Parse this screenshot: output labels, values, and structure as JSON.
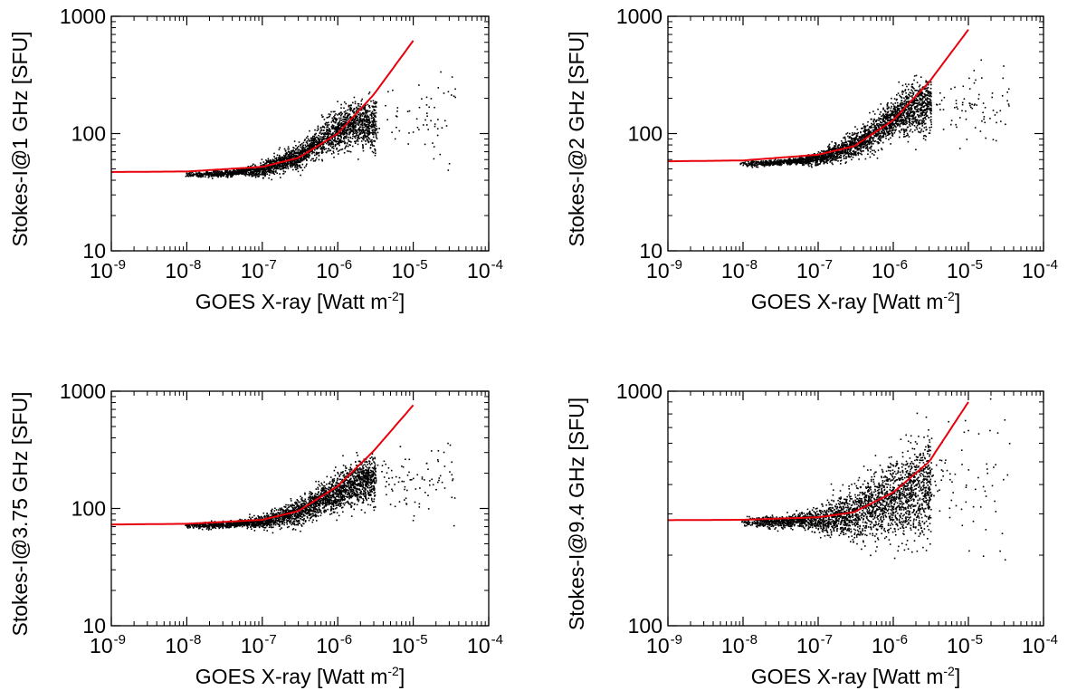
{
  "colors": {
    "points": "#000000",
    "fit": "#e8000b",
    "axes": "#000000"
  },
  "chart_data": [
    {
      "type": "scatter",
      "xlabel": "GOES X-ray [Watt m",
      "xlabel_sup": "-2",
      "xlabel_end": "]",
      "ylabel": "Stokes-I@1 GHz [SFU]",
      "x_scale": "log",
      "y_scale": "log",
      "xlim": [
        1e-09,
        0.0001
      ],
      "ylim": [
        10,
        1000
      ],
      "x_ticks": [
        "-9",
        "-8",
        "-7",
        "-6",
        "-5",
        "-4"
      ],
      "y_ticks": [
        "10",
        "100",
        "1000"
      ],
      "grid": false,
      "series": [
        {
          "kind": "points",
          "x": [
            1e-08,
            3e-08,
            1e-07,
            3e-07,
            6e-07,
            1e-06,
            1.5e-06,
            2.5e-06,
            4e-06,
            1e-05,
            4e-05
          ],
          "y": [
            45,
            46,
            50,
            65,
            90,
            110,
            120,
            125,
            120,
            130,
            150
          ]
        },
        {
          "kind": "fit",
          "x": [
            1e-09,
            1e-08,
            1e-07,
            3e-07,
            1e-06,
            3e-06,
            1e-05
          ],
          "y": [
            47,
            47.5,
            52,
            62,
            100,
            215,
            620
          ]
        }
      ]
    },
    {
      "type": "scatter",
      "xlabel": "GOES X-ray [Watt m",
      "xlabel_sup": "-2",
      "xlabel_end": "]",
      "ylabel": "Stokes-I@2 GHz [SFU]",
      "x_scale": "log",
      "y_scale": "log",
      "xlim": [
        1e-09,
        0.0001
      ],
      "ylim": [
        10,
        1000
      ],
      "x_ticks": [
        "-9",
        "-8",
        "-7",
        "-6",
        "-5",
        "-4"
      ],
      "y_ticks": [
        "10",
        "100",
        "1000"
      ],
      "grid": false,
      "series": [
        {
          "kind": "points",
          "x": [
            1e-08,
            3e-08,
            1e-07,
            3e-07,
            6e-07,
            1e-06,
            2e-06,
            4e-06,
            1e-05,
            4e-05
          ],
          "y": [
            56,
            57,
            62,
            80,
            110,
            140,
            170,
            180,
            160,
            170
          ]
        },
        {
          "kind": "fit",
          "x": [
            1e-09,
            1e-08,
            1e-07,
            3e-07,
            1e-06,
            3e-06,
            1e-05
          ],
          "y": [
            58,
            59,
            66,
            78,
            130,
            275,
            770
          ]
        }
      ]
    },
    {
      "type": "scatter",
      "xlabel": "GOES X-ray [Watt m",
      "xlabel_sup": "-2",
      "xlabel_end": "]",
      "ylabel": "Stokes-I@3.75 GHz [SFU]",
      "x_scale": "log",
      "y_scale": "log",
      "xlim": [
        1e-09,
        0.0001
      ],
      "ylim": [
        10,
        1000
      ],
      "x_ticks": [
        "-9",
        "-8",
        "-7",
        "-6",
        "-5",
        "-4"
      ],
      "y_ticks": [
        "10",
        "100",
        "1000"
      ],
      "grid": false,
      "series": [
        {
          "kind": "points",
          "x": [
            1e-08,
            3e-08,
            1e-07,
            3e-07,
            6e-07,
            1e-06,
            2e-06,
            4e-06,
            1e-05,
            4e-05
          ],
          "y": [
            72,
            73,
            78,
            95,
            120,
            140,
            170,
            180,
            160,
            200
          ]
        },
        {
          "kind": "fit",
          "x": [
            1e-09,
            1e-08,
            1e-07,
            3e-07,
            1e-06,
            3e-06,
            1e-05
          ],
          "y": [
            73,
            74,
            80,
            95,
            155,
            310,
            760
          ]
        }
      ]
    },
    {
      "type": "scatter",
      "xlabel": "GOES X-ray [Watt m",
      "xlabel_sup": "-2",
      "xlabel_end": "]",
      "ylabel": "Stokes-I@9.4 GHz [SFU]",
      "x_scale": "log",
      "y_scale": "log",
      "xlim": [
        1e-09,
        0.0001
      ],
      "ylim": [
        100,
        1000
      ],
      "x_ticks": [
        "-9",
        "-8",
        "-7",
        "-6",
        "-5",
        "-4"
      ],
      "y_ticks": [
        "100",
        "1000"
      ],
      "grid": false,
      "series": [
        {
          "kind": "points",
          "x": [
            1e-08,
            3e-08,
            1e-07,
            3e-07,
            6e-07,
            1e-06,
            2e-06,
            4e-06,
            1e-05,
            4e-05
          ],
          "y": [
            278,
            280,
            285,
            300,
            330,
            350,
            380,
            400,
            390,
            500
          ]
        },
        {
          "kind": "fit",
          "x": [
            1e-09,
            1e-08,
            1e-07,
            3e-07,
            1e-06,
            3e-06,
            1e-05
          ],
          "y": [
            282,
            283,
            290,
            305,
            370,
            500,
            900
          ]
        }
      ]
    }
  ]
}
